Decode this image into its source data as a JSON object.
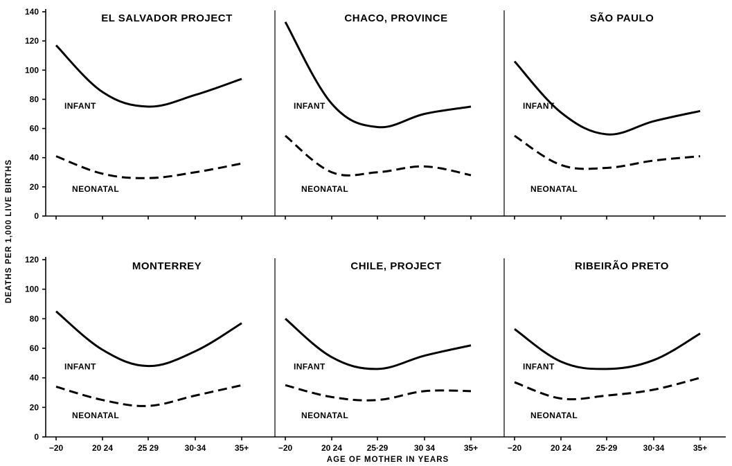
{
  "chart_data": {
    "type": "line",
    "xlabel": "AGE OF MOTHER IN YEARS",
    "ylabel": "DEATHS PER 1,000 LIVE BIRTHS",
    "x_categories": [
      "−20",
      "20·24",
      "25·29",
      "30·34",
      "35+"
    ],
    "panel_x_tick_labels": [
      [
        "−20",
        "20 24",
        "25 29",
        "30·34",
        "35+"
      ],
      [
        "−20",
        "20 24",
        "25·29",
        "30 34",
        "35+"
      ],
      [
        "−20",
        "20 24",
        "25·29",
        "30·34",
        "35+"
      ]
    ],
    "rows": [
      {
        "ylim": [
          0,
          140
        ],
        "yticks": [
          0,
          20,
          40,
          60,
          80,
          100,
          120,
          140
        ]
      },
      {
        "ylim": [
          0,
          120
        ],
        "yticks": [
          0,
          20,
          40,
          60,
          80,
          100,
          120
        ]
      }
    ],
    "panels": [
      {
        "title": "EL SALVADOR  PROJECT",
        "row": 0,
        "col": 0,
        "series": [
          {
            "name": "INFANT",
            "style": "solid",
            "values": [
              117,
              85,
              75,
              83,
              94
            ]
          },
          {
            "name": "NEONATAL",
            "style": "dashed",
            "values": [
              41,
              29,
              26,
              30,
              36
            ]
          }
        ]
      },
      {
        "title": "CHACO, PROVINCE",
        "row": 0,
        "col": 1,
        "series": [
          {
            "name": "INFANT",
            "style": "solid",
            "values": [
              133,
              77,
              61,
              70,
              75
            ]
          },
          {
            "name": "NEONATAL",
            "style": "dashed",
            "values": [
              55,
              30,
              30,
              34,
              28
            ]
          }
        ]
      },
      {
        "title": "SÃO PAULO",
        "row": 0,
        "col": 2,
        "series": [
          {
            "name": "INFANT",
            "style": "solid",
            "values": [
              106,
              71,
              56,
              65,
              72
            ]
          },
          {
            "name": "NEONATAL",
            "style": "dashed",
            "values": [
              55,
              35,
              33,
              38,
              41
            ]
          }
        ]
      },
      {
        "title": "MONTERREY",
        "row": 1,
        "col": 0,
        "series": [
          {
            "name": "INFANT",
            "style": "solid",
            "values": [
              85,
              59,
              48,
              58,
              77
            ]
          },
          {
            "name": "NEONATAL",
            "style": "dashed",
            "values": [
              34,
              25,
              21,
              28,
              35
            ]
          }
        ]
      },
      {
        "title": "CHILE, PROJECT",
        "row": 1,
        "col": 1,
        "series": [
          {
            "name": "INFANT",
            "style": "solid",
            "values": [
              80,
              54,
              46,
              55,
              62
            ]
          },
          {
            "name": "NEONATAL",
            "style": "dashed",
            "values": [
              35,
              27,
              25,
              31,
              31
            ]
          }
        ]
      },
      {
        "title": "RIBEIRÃO PRETO",
        "row": 1,
        "col": 2,
        "series": [
          {
            "name": "INFANT",
            "style": "solid",
            "values": [
              73,
              51,
              46,
              52,
              70
            ]
          },
          {
            "name": "NEONATAL",
            "style": "dashed",
            "values": [
              37,
              26,
              28,
              32,
              40
            ]
          }
        ]
      }
    ]
  }
}
